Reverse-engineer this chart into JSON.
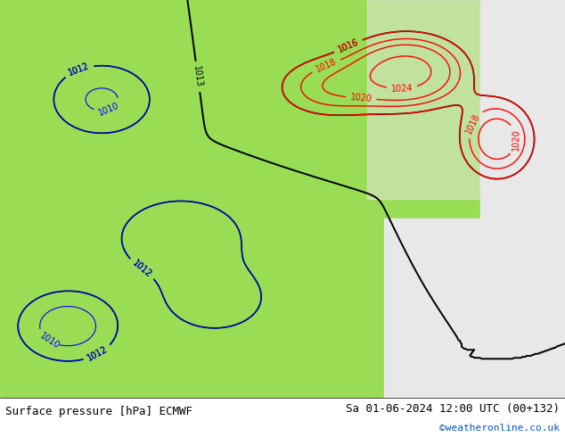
{
  "title_left": "Surface pressure [hPa] ECMWF",
  "title_right": "Sa 01-06-2024 12:00 UTC (00+132)",
  "copyright": "©weatheronline.co.uk",
  "bg_color_land": "#99dd55",
  "bg_color_sea": "#e8e8e8",
  "bg_color_bottom": "#ffffff",
  "text_color": "#000000",
  "copyright_color": "#0055cc",
  "bottom_bar_height": 0.09,
  "figsize": [
    6.34,
    4.9
  ],
  "dpi": 100
}
